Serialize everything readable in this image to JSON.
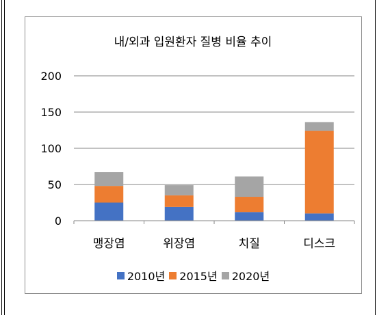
{
  "chart_data": {
    "type": "bar",
    "stacked": true,
    "title": "내/외과 입원환자 질병 비율 추이",
    "categories": [
      "맹장염",
      "위장염",
      "치질",
      "디스크"
    ],
    "series": [
      {
        "name": "2010년",
        "color": "#4472c4",
        "values": [
          25,
          19,
          12,
          10
        ]
      },
      {
        "name": "2015년",
        "color": "#ed7d31",
        "values": [
          23,
          16,
          21,
          114
        ]
      },
      {
        "name": "2020년",
        "color": "#a5a5a5",
        "values": [
          19,
          14,
          28,
          12
        ]
      }
    ],
    "ylim": [
      0,
      200
    ],
    "yticks": [
      "0",
      "50",
      "100",
      "150",
      "200"
    ],
    "grid": true,
    "legend_position": "bottom"
  }
}
